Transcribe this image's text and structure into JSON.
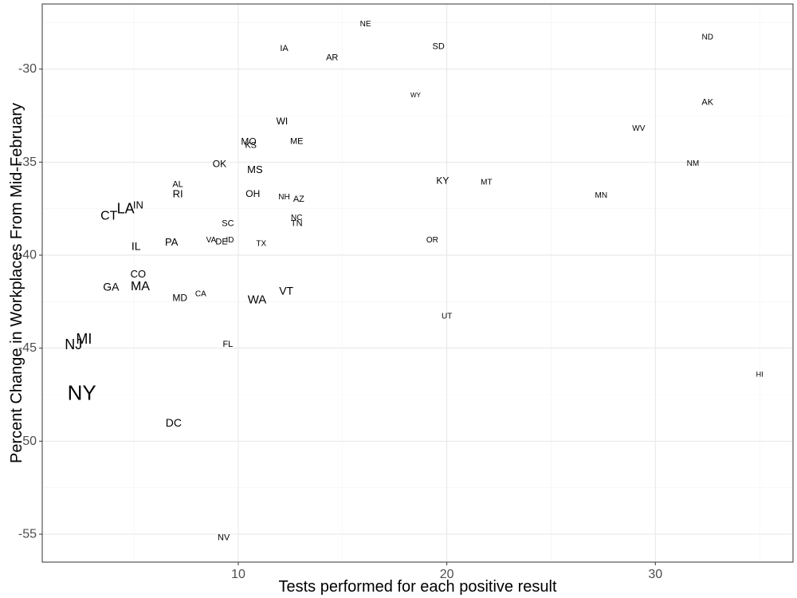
{
  "chart_data": {
    "type": "scatter",
    "title": "",
    "xlabel": "Tests performed for each positive result",
    "ylabel": "Percent Change in Workplaces From Mid-February",
    "xlim": [
      0.6,
      36.6
    ],
    "ylim": [
      -56.5,
      -26.5
    ],
    "x_ticks": [
      10,
      20,
      30
    ],
    "x_tick_labels": [
      "10",
      "20",
      "30"
    ],
    "y_ticks": [
      -55,
      -50,
      -45,
      -40,
      -35,
      -30
    ],
    "y_tick_labels": [
      "-55",
      "-50",
      "-45",
      "-40",
      "-35",
      "-30"
    ],
    "grid": true,
    "marker": "text labels sized by value",
    "points": [
      {
        "label": "NE",
        "x": 16.1,
        "y": -27.6,
        "size": 10
      },
      {
        "label": "ND",
        "x": 32.5,
        "y": -28.3,
        "size": 10
      },
      {
        "label": "IA",
        "x": 12.2,
        "y": -28.9,
        "size": 11
      },
      {
        "label": "SD",
        "x": 19.6,
        "y": -28.8,
        "size": 11
      },
      {
        "label": "AR",
        "x": 14.5,
        "y": -29.4,
        "size": 11
      },
      {
        "label": "WY",
        "x": 18.5,
        "y": -31.4,
        "size": 8
      },
      {
        "label": "AK",
        "x": 32.5,
        "y": -31.8,
        "size": 11
      },
      {
        "label": "WI",
        "x": 12.1,
        "y": -32.8,
        "size": 12
      },
      {
        "label": "WV",
        "x": 29.2,
        "y": -33.2,
        "size": 10
      },
      {
        "label": "MO",
        "x": 10.5,
        "y": -33.9,
        "size": 12
      },
      {
        "label": "KS",
        "x": 10.6,
        "y": -34.1,
        "size": 11
      },
      {
        "label": "ME",
        "x": 12.8,
        "y": -33.9,
        "size": 11
      },
      {
        "label": "OK",
        "x": 9.1,
        "y": -35.1,
        "size": 12
      },
      {
        "label": "NM",
        "x": 31.8,
        "y": -35.1,
        "size": 10
      },
      {
        "label": "MS",
        "x": 10.8,
        "y": -35.4,
        "size": 13
      },
      {
        "label": "KY",
        "x": 19.8,
        "y": -36.0,
        "size": 12
      },
      {
        "label": "MT",
        "x": 21.9,
        "y": -36.1,
        "size": 10
      },
      {
        "label": "AL",
        "x": 7.1,
        "y": -36.2,
        "size": 11
      },
      {
        "label": "RI",
        "x": 7.1,
        "y": -36.7,
        "size": 13
      },
      {
        "label": "OH",
        "x": 10.7,
        "y": -36.7,
        "size": 12
      },
      {
        "label": "MN",
        "x": 27.4,
        "y": -36.8,
        "size": 10
      },
      {
        "label": "NH",
        "x": 12.2,
        "y": -36.9,
        "size": 10
      },
      {
        "label": "AZ",
        "x": 12.9,
        "y": -37.0,
        "size": 11
      },
      {
        "label": "IN",
        "x": 5.2,
        "y": -37.3,
        "size": 13
      },
      {
        "label": "LA",
        "x": 4.6,
        "y": -37.5,
        "size": 18
      },
      {
        "label": "CT",
        "x": 3.8,
        "y": -37.9,
        "size": 16
      },
      {
        "label": "NC",
        "x": 12.8,
        "y": -38.0,
        "size": 10
      },
      {
        "label": "SC",
        "x": 9.5,
        "y": -38.3,
        "size": 11
      },
      {
        "label": "TN",
        "x": 12.8,
        "y": -38.3,
        "size": 11
      },
      {
        "label": "VA",
        "x": 8.7,
        "y": -39.2,
        "size": 10
      },
      {
        "label": "DE",
        "x": 9.2,
        "y": -39.3,
        "size": 11
      },
      {
        "label": "ID",
        "x": 9.6,
        "y": -39.2,
        "size": 10
      },
      {
        "label": "OR",
        "x": 19.3,
        "y": -39.2,
        "size": 10
      },
      {
        "label": "PA",
        "x": 6.8,
        "y": -39.3,
        "size": 13
      },
      {
        "label": "TX",
        "x": 11.1,
        "y": -39.4,
        "size": 10
      },
      {
        "label": "IL",
        "x": 5.1,
        "y": -39.5,
        "size": 14
      },
      {
        "label": "CO",
        "x": 5.2,
        "y": -41.0,
        "size": 13
      },
      {
        "label": "GA",
        "x": 3.9,
        "y": -41.7,
        "size": 14
      },
      {
        "label": "MA",
        "x": 5.3,
        "y": -41.7,
        "size": 16
      },
      {
        "label": "VT",
        "x": 12.3,
        "y": -41.9,
        "size": 14
      },
      {
        "label": "CA",
        "x": 8.2,
        "y": -42.1,
        "size": 10
      },
      {
        "label": "MD",
        "x": 7.2,
        "y": -42.3,
        "size": 12
      },
      {
        "label": "WA",
        "x": 10.9,
        "y": -42.4,
        "size": 15
      },
      {
        "label": "UT",
        "x": 20.0,
        "y": -43.3,
        "size": 10
      },
      {
        "label": "MI",
        "x": 2.6,
        "y": -44.5,
        "size": 18
      },
      {
        "label": "NJ",
        "x": 2.1,
        "y": -44.8,
        "size": 18
      },
      {
        "label": "FL",
        "x": 9.5,
        "y": -44.8,
        "size": 11
      },
      {
        "label": "HI",
        "x": 35.0,
        "y": -46.4,
        "size": 9
      },
      {
        "label": "NY",
        "x": 2.5,
        "y": -47.4,
        "size": 26
      },
      {
        "label": "DC",
        "x": 6.9,
        "y": -49.0,
        "size": 14
      },
      {
        "label": "NV",
        "x": 9.3,
        "y": -55.2,
        "size": 11
      }
    ]
  }
}
